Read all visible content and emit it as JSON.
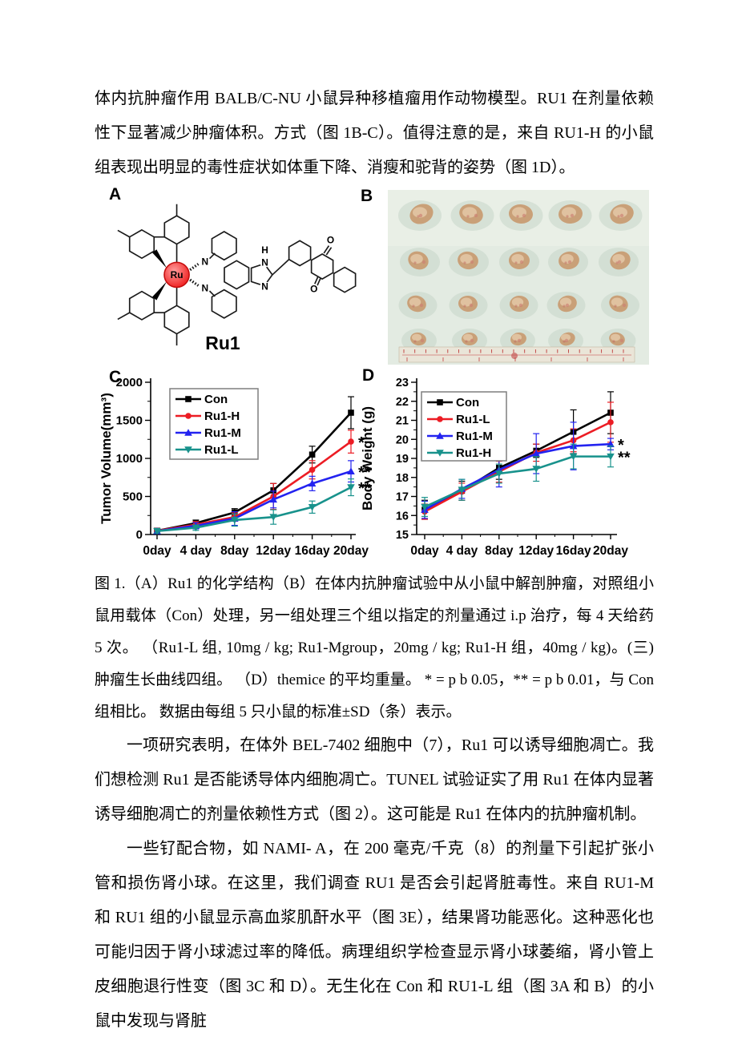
{
  "document": {
    "paragraph_1": "体内抗肿瘤作用 BALB/C-NU 小鼠异种移植瘤用作动物模型。RU1 在剂量依赖性下显著减少肿瘤体积。方式（图 1B-C）。值得注意的是，来自 RU1-H 的小鼠 组表现出明显的毒性症状如体重下降、消瘦和驼背的姿势（图 1D）。",
    "figure_caption": "图 1.（A）Ru1 的化学结构（B）在体内抗肿瘤试验中从小鼠中解剖肿瘤，对照组小鼠用载体（Con）处理，另一组处理三个组以指定的剂量通过 i.p 治疗，每 4 天给药 5 次。 （Ru1-L 组, 10mg / kg; Ru1-Mgroup，20mg / kg; Ru1-H 组，40mg / kg)。(三)肿瘤生长曲线四组。 （D）themice 的平均重量。  * = p b 0.05，** = p b 0.01，与 Con 组相比。  数据由每组 5 只小鼠的标准±SD（条）表示。",
    "paragraph_2": "一项研究表明，在体外 BEL-7402 细胞中（7），Ru1 可以诱导细胞凋亡。我们想检测 Ru1 是否能诱导体内细胞凋亡。TUNEL 试验证实了用 Ru1 在体内显著诱导细胞凋亡的剂量依赖性方式（图 2）。这可能是 Ru1 在体内的抗肿瘤机制。",
    "paragraph_3": "一些钌配合物，如 NAMI- A，在 200 毫克/千克（8）的剂量下引起扩张小管和损伤肾小球。在这里，我们调查 RU1 是否会引起肾脏毒性。来自 RU1-M 和 RU1 组的小鼠显示高血浆肌酐水平（图 3E），结果肾功能恶化。这种恶化也可能归因于肾小球滤过率的降低。病理组织学检查显示肾小球萎缩，肾小管上皮细胞退行性变（图 3C 和 D）。无生化在 Con 和 RU1-L 组（图 3A 和 B）的小鼠中发现与肾脏"
  },
  "figure": {
    "panels": {
      "a": "A",
      "b": "B",
      "c": "C",
      "d": "D"
    },
    "molecule": {
      "name": "Ru1",
      "atoms": {
        "ru": "Ru",
        "n1": "N",
        "n2": "N",
        "nh_h": "H",
        "nh_n": "N",
        "n3": "N",
        "o1": "O",
        "o2": "O"
      }
    }
  },
  "chart_data": [
    {
      "id": "tumor-volume",
      "type": "line",
      "panel": "C",
      "title": "",
      "xlabel": "",
      "ylabel": "Tumor Volume(mm³)",
      "categories": [
        "0day",
        "4 day",
        "8day",
        "12day",
        "16day",
        "20day"
      ],
      "ylim": [
        0,
        2000
      ],
      "yticks": [
        0,
        500,
        1000,
        1500,
        2000
      ],
      "grid": false,
      "legend_position": "top-left",
      "series": [
        {
          "name": "Con",
          "color": "#000000",
          "marker": "square",
          "values": [
            50,
            150,
            290,
            580,
            1050,
            1600
          ],
          "errors": [
            30,
            40,
            50,
            90,
            110,
            210
          ],
          "annotation": ""
        },
        {
          "name": "Ru1-H",
          "color": "#ec1c24",
          "marker": "circle",
          "values": [
            50,
            130,
            230,
            500,
            850,
            1220
          ],
          "errors": [
            30,
            40,
            55,
            170,
            120,
            150
          ],
          "annotation": "*"
        },
        {
          "name": "Ru1-M",
          "color": "#2323f0",
          "marker": "triangle-up",
          "values": [
            45,
            115,
            210,
            460,
            670,
            830
          ],
          "errors": [
            25,
            40,
            90,
            110,
            95,
            140
          ],
          "annotation": "**"
        },
        {
          "name": "Ru1-L",
          "color": "#18928c",
          "marker": "triangle-down",
          "values": [
            45,
            90,
            190,
            230,
            360,
            620
          ],
          "errors": [
            25,
            35,
            80,
            95,
            80,
            110
          ],
          "annotation": "**"
        }
      ]
    },
    {
      "id": "body-weight",
      "type": "line",
      "panel": "D",
      "title": "",
      "xlabel": "",
      "ylabel": "Body Weight (g)",
      "categories": [
        "0day",
        "4 day",
        "8day",
        "12day",
        "16day",
        "20day"
      ],
      "ylim": [
        15,
        23
      ],
      "yticks": [
        15,
        16,
        17,
        18,
        19,
        20,
        21,
        22,
        23
      ],
      "grid": false,
      "legend_position": "top-left",
      "series": [
        {
          "name": "Con",
          "color": "#000000",
          "marker": "square",
          "values": [
            16.3,
            17.3,
            18.5,
            19.4,
            20.4,
            21.4
          ],
          "errors": [
            0.5,
            0.5,
            0.6,
            0.35,
            1.15,
            1.1
          ],
          "annotation": ""
        },
        {
          "name": "Ru1-L",
          "color": "#ec1c24",
          "marker": "circle",
          "values": [
            16.2,
            17.25,
            18.3,
            19.3,
            19.95,
            20.9
          ],
          "errors": [
            0.4,
            0.45,
            0.55,
            0.45,
            0.6,
            1.05
          ],
          "annotation": ""
        },
        {
          "name": "Ru1-M",
          "color": "#2323f0",
          "marker": "triangle-up",
          "values": [
            16.3,
            17.4,
            18.4,
            19.25,
            19.65,
            19.75
          ],
          "errors": [
            0.45,
            0.5,
            0.9,
            1.05,
            1.25,
            0.3
          ],
          "annotation": "*"
        },
        {
          "name": "Ru1-H",
          "color": "#18928c",
          "marker": "triangle-down",
          "values": [
            16.45,
            17.35,
            18.2,
            18.45,
            19.1,
            19.1
          ],
          "errors": [
            0.5,
            0.55,
            0.5,
            0.65,
            0.65,
            0.55
          ],
          "annotation": "**"
        }
      ]
    }
  ]
}
